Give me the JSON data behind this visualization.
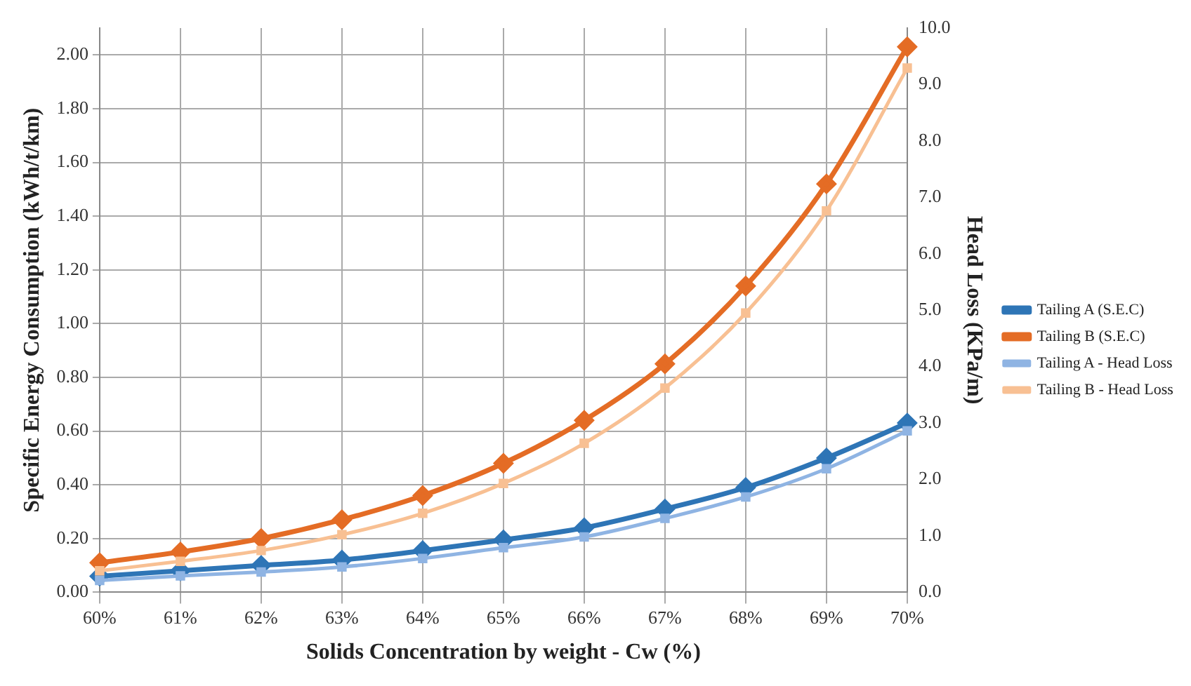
{
  "chart_data": {
    "type": "line",
    "xlabel": "Solids Concentration by weight - Cw (%)",
    "ylabel": "Specific Energy Consumption (kWh/t/km)",
    "y2label": "Head Loss (KPa/m)",
    "categories": [
      "60%",
      "61%",
      "62%",
      "63%",
      "64%",
      "65%",
      "66%",
      "67%",
      "68%",
      "69%",
      "70%"
    ],
    "series": [
      {
        "name": "Tailing A (S.E.C)",
        "color": "#2e75b6",
        "marker": "diamond",
        "values": [
          0.06,
          0.08,
          0.1,
          0.12,
          0.155,
          0.195,
          0.24,
          0.31,
          0.39,
          0.5,
          0.63
        ]
      },
      {
        "name": "Tailing B (S.E.C)",
        "color": "#e46c25",
        "marker": "diamond",
        "values": [
          0.11,
          0.15,
          0.2,
          0.27,
          0.36,
          0.48,
          0.64,
          0.85,
          1.14,
          1.52,
          2.03
        ]
      },
      {
        "name": "Tailing A - Head Loss",
        "color": "#8fb4e3",
        "marker": "square",
        "axis": "y2",
        "values": [
          0.21,
          0.29,
          0.36,
          0.45,
          0.6,
          0.79,
          0.98,
          1.31,
          1.69,
          2.19,
          2.86
        ]
      },
      {
        "name": "Tailing B - Head Loss",
        "color": "#f8c093",
        "marker": "square",
        "axis": "y2",
        "values": [
          0.38,
          0.55,
          0.74,
          1.02,
          1.4,
          1.93,
          2.64,
          3.62,
          4.95,
          6.76,
          9.29
        ]
      }
    ],
    "ylim": [
      0,
      2.1
    ],
    "yticks": [
      {
        "value": 0,
        "label": "0.00"
      },
      {
        "value": 0.2,
        "label": "0.20"
      },
      {
        "value": 0.4,
        "label": "0.40"
      },
      {
        "value": 0.6,
        "label": "0.60"
      },
      {
        "value": 0.8,
        "label": "0.80"
      },
      {
        "value": 1.0,
        "label": "1.00"
      },
      {
        "value": 1.2,
        "label": "1.20"
      },
      {
        "value": 1.4,
        "label": "1.40"
      },
      {
        "value": 1.6,
        "label": "1.60"
      },
      {
        "value": 1.8,
        "label": "1.80"
      },
      {
        "value": 2.0,
        "label": "2.00"
      }
    ],
    "y2lim": [
      0,
      10
    ],
    "y2ticks": [
      {
        "value": 0,
        "label": "0.0"
      },
      {
        "value": 1,
        "label": "1.0"
      },
      {
        "value": 2,
        "label": "2.0"
      },
      {
        "value": 3,
        "label": "3.0"
      },
      {
        "value": 4,
        "label": "4.0"
      },
      {
        "value": 5,
        "label": "5.0"
      },
      {
        "value": 6,
        "label": "6.0"
      },
      {
        "value": 7,
        "label": "7.0"
      },
      {
        "value": 8,
        "label": "8.0"
      },
      {
        "value": 9,
        "label": "9.0"
      },
      {
        "value": 10,
        "label": "10.0"
      }
    ],
    "grid": true,
    "legend": "right",
    "line_style": "solid"
  }
}
